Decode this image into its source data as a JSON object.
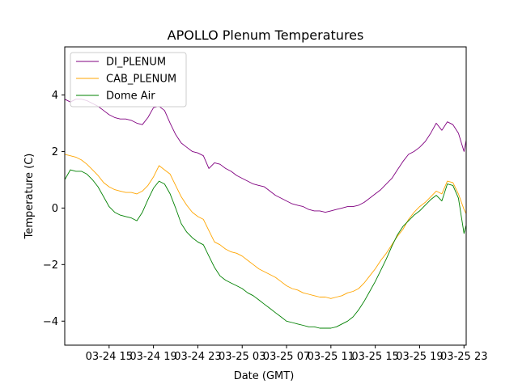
{
  "chart_data": {
    "type": "line",
    "title": "APOLLO Plenum Temperatures",
    "xlabel": "Date (GMT)",
    "ylabel": "Temperature (C)",
    "x_unit": "hours since 03-24 11:00 GMT",
    "xlim": [
      0,
      36.2
    ],
    "ylim": [
      -4.85,
      5.7
    ],
    "xticks": [
      {
        "label": "03-24 15",
        "value": 4
      },
      {
        "label": "03-24 19",
        "value": 8
      },
      {
        "label": "03-24 23",
        "value": 12
      },
      {
        "label": "03-25 03",
        "value": 16
      },
      {
        "label": "03-25 07",
        "value": 20
      },
      {
        "label": "03-25 11",
        "value": 24
      },
      {
        "label": "03-25 15",
        "value": 28
      },
      {
        "label": "03-25 19",
        "value": 32
      },
      {
        "label": "03-25 23",
        "value": 36
      }
    ],
    "yticks": [
      {
        "label": "4",
        "value": 4
      },
      {
        "label": "2",
        "value": 2
      },
      {
        "label": "0",
        "value": 0
      },
      {
        "label": "−2",
        "value": -2
      },
      {
        "label": "−4",
        "value": -4
      }
    ],
    "grid": false,
    "legend_position": "top-left",
    "x": [
      0,
      0.5,
      1,
      1.5,
      2,
      2.5,
      3,
      3.5,
      4,
      4.5,
      5,
      5.5,
      6,
      6.5,
      7,
      7.5,
      8,
      8.5,
      9,
      9.5,
      10,
      10.5,
      11,
      11.5,
      12,
      12.5,
      13,
      13.5,
      14,
      14.5,
      15,
      15.5,
      16,
      16.5,
      17,
      17.5,
      18,
      18.5,
      19,
      19.5,
      20,
      20.5,
      21,
      21.5,
      22,
      22.5,
      23,
      23.5,
      24,
      24.5,
      25,
      25.5,
      26,
      26.5,
      27,
      27.5,
      28,
      28.5,
      29,
      29.5,
      30,
      30.5,
      31,
      31.5,
      32,
      32.5,
      33,
      33.5,
      34,
      34.5,
      35,
      35.5,
      36,
      36.2
    ],
    "series": [
      {
        "name": "DI_PLENUM",
        "color": "#800080",
        "values": [
          3.85,
          3.75,
          3.85,
          3.85,
          3.8,
          3.7,
          3.6,
          3.45,
          3.3,
          3.2,
          3.15,
          3.15,
          3.1,
          3.0,
          2.95,
          3.2,
          3.55,
          3.6,
          3.45,
          3.0,
          2.6,
          2.3,
          2.15,
          2.0,
          1.95,
          1.85,
          1.4,
          1.6,
          1.55,
          1.4,
          1.3,
          1.15,
          1.05,
          0.95,
          0.85,
          0.8,
          0.75,
          0.6,
          0.45,
          0.35,
          0.25,
          0.15,
          0.1,
          0.05,
          -0.05,
          -0.1,
          -0.1,
          -0.15,
          -0.1,
          -0.05,
          0.0,
          0.05,
          0.05,
          0.1,
          0.2,
          0.35,
          0.5,
          0.65,
          0.85,
          1.05,
          1.35,
          1.65,
          1.9,
          2.0,
          2.15,
          2.35,
          2.65,
          3.0,
          2.75,
          3.05,
          2.95,
          2.65,
          2.0,
          2.4
        ]
      },
      {
        "name": "CAB_PLENUM",
        "color": "#ffa500",
        "values": [
          1.9,
          1.85,
          1.8,
          1.7,
          1.55,
          1.35,
          1.15,
          0.9,
          0.75,
          0.65,
          0.6,
          0.55,
          0.55,
          0.5,
          0.6,
          0.8,
          1.1,
          1.5,
          1.35,
          1.2,
          0.8,
          0.4,
          0.1,
          -0.15,
          -0.3,
          -0.4,
          -0.8,
          -1.2,
          -1.3,
          -1.45,
          -1.55,
          -1.6,
          -1.7,
          -1.85,
          -2.0,
          -2.15,
          -2.25,
          -2.35,
          -2.45,
          -2.6,
          -2.75,
          -2.85,
          -2.9,
          -3.0,
          -3.05,
          -3.1,
          -3.15,
          -3.15,
          -3.2,
          -3.15,
          -3.1,
          -3.0,
          -2.95,
          -2.85,
          -2.65,
          -2.4,
          -2.15,
          -1.85,
          -1.6,
          -1.3,
          -1.0,
          -0.75,
          -0.4,
          -0.15,
          0.05,
          0.2,
          0.4,
          0.6,
          0.5,
          0.95,
          0.9,
          0.5,
          -0.05,
          -0.2
        ]
      },
      {
        "name": "Dome Air",
        "color": "#008000",
        "values": [
          1.0,
          1.35,
          1.3,
          1.3,
          1.2,
          1.0,
          0.75,
          0.4,
          0.05,
          -0.15,
          -0.25,
          -0.3,
          -0.35,
          -0.45,
          -0.15,
          0.3,
          0.7,
          0.95,
          0.85,
          0.5,
          0.0,
          -0.55,
          -0.85,
          -1.05,
          -1.2,
          -1.3,
          -1.7,
          -2.1,
          -2.4,
          -2.55,
          -2.65,
          -2.75,
          -2.85,
          -3.0,
          -3.1,
          -3.25,
          -3.4,
          -3.55,
          -3.7,
          -3.85,
          -4.0,
          -4.05,
          -4.1,
          -4.15,
          -4.2,
          -4.2,
          -4.25,
          -4.25,
          -4.25,
          -4.2,
          -4.1,
          -4.0,
          -3.85,
          -3.6,
          -3.3,
          -2.95,
          -2.6,
          -2.2,
          -1.8,
          -1.35,
          -0.95,
          -0.65,
          -0.45,
          -0.25,
          -0.1,
          0.1,
          0.3,
          0.45,
          0.25,
          0.85,
          0.8,
          0.35,
          -0.9,
          -0.6
        ]
      }
    ]
  }
}
